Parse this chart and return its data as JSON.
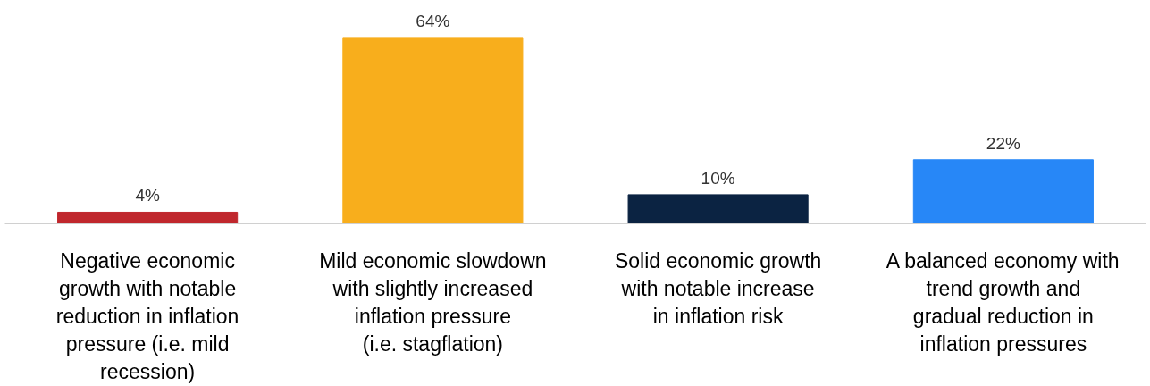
{
  "chart_data": {
    "type": "bar",
    "categories": [
      "Negative economic growth with notable reduction in inflation pressure (i.e. mild recession)",
      "Mild economic slowdown with slightly increased inflation pressure (i.e. stagflation)",
      "Solid economic growth with notable increase in inflation risk",
      "A balanced economy with trend growth and gradual reduction in inflation pressures"
    ],
    "values": [
      4,
      64,
      10,
      22
    ],
    "colors": [
      "#c0272d",
      "#f8ae1c",
      "#0b2342",
      "#2787f7"
    ],
    "value_labels": [
      "4%",
      "64%",
      "10%",
      "22%"
    ]
  }
}
